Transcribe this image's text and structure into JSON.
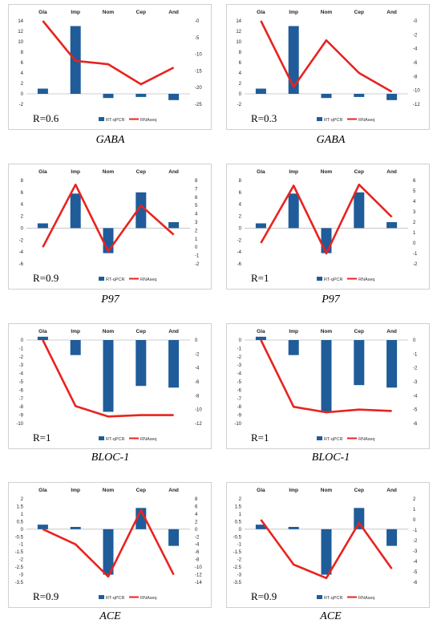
{
  "chart_data": [
    {
      "type": "bar",
      "gene": "GABA",
      "r_label": "R=0.6",
      "categories": [
        "Gla",
        "Imp",
        "Nom",
        "Cep",
        "And"
      ],
      "legend": [
        "RT-qPCR",
        "RNAseq"
      ],
      "left_axis": {
        "min": -2,
        "max": 14,
        "step": 2
      },
      "right_axis": {
        "min": -25,
        "max": 0,
        "step": 5,
        "top_label": "-0"
      },
      "series": [
        {
          "name": "RT-qPCR",
          "values": [
            1,
            13,
            -0.8,
            -0.6,
            -1.2
          ]
        },
        {
          "name": "RNAseq",
          "values": [
            0,
            -12,
            -13,
            -19,
            -14
          ]
        }
      ]
    },
    {
      "type": "bar",
      "gene": "GABA",
      "r_label": "R=0.3",
      "categories": [
        "Gla",
        "Imp",
        "Nom",
        "Cep",
        "And"
      ],
      "legend": [
        "RT-qPCR",
        "RNAseq"
      ],
      "left_axis": {
        "min": -2,
        "max": 14,
        "step": 2
      },
      "right_axis": {
        "min": -12,
        "max": 0,
        "step": 2,
        "top_label": "-0"
      },
      "series": [
        {
          "name": "RT-qPCR",
          "values": [
            1,
            13,
            -0.8,
            -0.6,
            -1.2
          ]
        },
        {
          "name": "RNAseq",
          "values": [
            0,
            -9.5,
            -2.8,
            -7.5,
            -10.2
          ]
        }
      ]
    },
    {
      "type": "bar",
      "gene": "P97",
      "r_label": "R=0.9",
      "categories": [
        "Gla",
        "Imp",
        "Nom",
        "Cep",
        "And"
      ],
      "legend": [
        "RT-qPCR",
        "RNAseq"
      ],
      "left_axis": {
        "min": -6,
        "max": 8,
        "step": 2
      },
      "right_axis": {
        "min": -2,
        "max": 8,
        "step": 1
      },
      "series": [
        {
          "name": "RT-qPCR",
          "values": [
            0.8,
            5.8,
            -4.2,
            6,
            1
          ]
        },
        {
          "name": "RNAseq",
          "values": [
            0,
            7.5,
            -0.5,
            5,
            1.5
          ]
        }
      ]
    },
    {
      "type": "bar",
      "gene": "P97",
      "r_label": "R=1",
      "categories": [
        "Gla",
        "Imp",
        "Nom",
        "Cep",
        "And"
      ],
      "legend": [
        "RT-qPCR",
        "RNAseq"
      ],
      "left_axis": {
        "min": -6,
        "max": 8,
        "step": 2
      },
      "right_axis": {
        "min": -2,
        "max": 6,
        "step": 1
      },
      "series": [
        {
          "name": "RT-qPCR",
          "values": [
            0.8,
            5.8,
            -4.2,
            6,
            1
          ]
        },
        {
          "name": "RNAseq",
          "values": [
            0,
            5.5,
            -1,
            5.6,
            2.5
          ]
        }
      ]
    },
    {
      "type": "bar",
      "gene": "BLOC-1",
      "r_label": "R=1",
      "categories": [
        "Gla",
        "Imp",
        "Nom",
        "Cep",
        "And"
      ],
      "legend": [
        "RT-qPCR",
        "RNAseq"
      ],
      "left_axis": {
        "min": -10,
        "max": 0,
        "step": 1
      },
      "right_axis": {
        "min": -12,
        "max": 0,
        "step": 2
      },
      "series": [
        {
          "name": "RT-qPCR",
          "values": [
            0.4,
            -1.8,
            -8.6,
            -5.5,
            -5.7
          ]
        },
        {
          "name": "RNAseq",
          "values": [
            0,
            -9.5,
            -11,
            -10.8,
            -10.8
          ]
        }
      ]
    },
    {
      "type": "bar",
      "gene": "BLOC-1",
      "r_label": "R=1",
      "categories": [
        "Gla",
        "Imp",
        "Nom",
        "Cep",
        "And"
      ],
      "legend": [
        "RT-qPCR",
        "RNAseq"
      ],
      "left_axis": {
        "min": -10,
        "max": 0,
        "step": 1
      },
      "right_axis": {
        "min": -6,
        "max": 0,
        "step": 1
      },
      "series": [
        {
          "name": "RT-qPCR",
          "values": [
            0.4,
            -1.8,
            -8.6,
            -5.4,
            -5.7
          ]
        },
        {
          "name": "RNAseq",
          "values": [
            0,
            -4.8,
            -5.2,
            -5,
            -5.1
          ]
        }
      ]
    },
    {
      "type": "bar",
      "gene": "ACE",
      "r_label": "R=0.9",
      "categories": [
        "Gla",
        "Imp",
        "Nom",
        "Cep",
        "And"
      ],
      "legend": [
        "RT-qPCR",
        "RNAseq"
      ],
      "left_axis": {
        "min": -3.5,
        "max": 2,
        "step": 0.5
      },
      "right_axis": {
        "min": -14,
        "max": 8,
        "step": 2
      },
      "series": [
        {
          "name": "RT-qPCR",
          "values": [
            0.3,
            0.15,
            -3,
            1.4,
            -1.1
          ]
        },
        {
          "name": "RNAseq",
          "values": [
            0,
            -4,
            -12.5,
            5,
            -12
          ]
        }
      ]
    },
    {
      "type": "bar",
      "gene": "ACE",
      "r_label": "R=0.9",
      "categories": [
        "Gla",
        "Imp",
        "Nom",
        "Cep",
        "And"
      ],
      "legend": [
        "RT-qPCR",
        "RNAseq"
      ],
      "left_axis": {
        "min": -3.5,
        "max": 2,
        "step": 0.5
      },
      "right_axis": {
        "min": -6,
        "max": 2,
        "step": 1
      },
      "series": [
        {
          "name": "RT-qPCR",
          "values": [
            0.3,
            0.15,
            -3,
            1.4,
            -1.1
          ]
        },
        {
          "name": "RNAseq",
          "values": [
            0,
            -4.3,
            -5.6,
            -0.3,
            -4.7
          ]
        }
      ]
    }
  ],
  "colors": {
    "bar": "#1f5c99",
    "line": "#e8231f"
  }
}
